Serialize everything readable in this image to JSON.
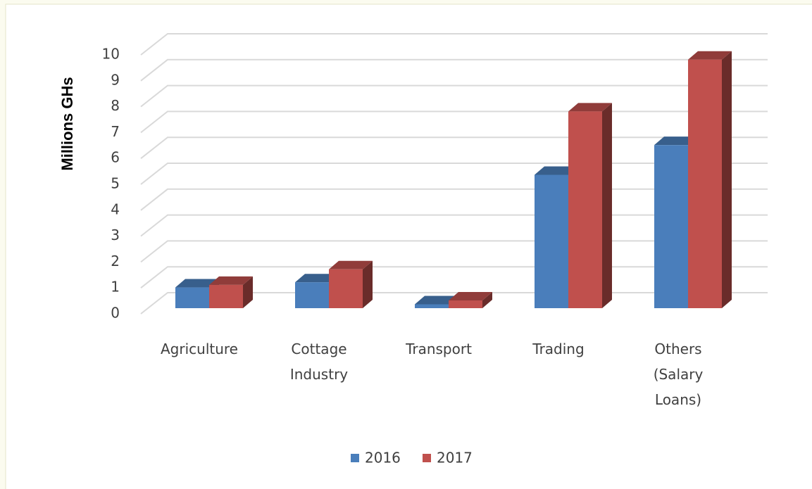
{
  "chart_data": {
    "type": "bar3d",
    "y_label": "Millions GHs",
    "categories": [
      "Agriculture",
      "Cottage Industry",
      "Transport",
      "Trading",
      "Others (Salary Loans)"
    ],
    "series": [
      {
        "name": "2016",
        "color": "#4a7ebb",
        "values": [
          0.8,
          1.0,
          0.15,
          5.15,
          6.3
        ]
      },
      {
        "name": "2017",
        "color": "#c0504d",
        "values": [
          0.9,
          1.5,
          0.3,
          7.6,
          9.6
        ]
      }
    ],
    "ylim": [
      0,
      10
    ],
    "yticks": [
      0,
      1,
      2,
      3,
      4,
      5,
      6,
      7,
      8,
      9,
      10
    ],
    "grid": true,
    "legend": "bottom"
  }
}
